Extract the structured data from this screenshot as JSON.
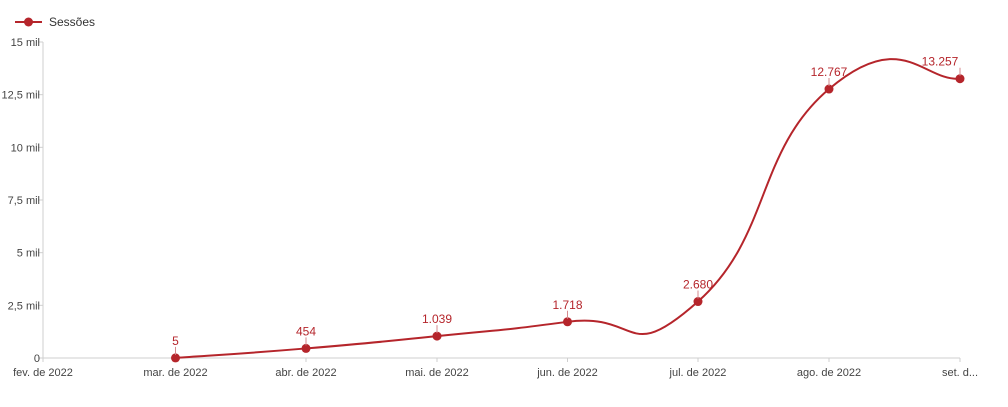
{
  "chart_data": {
    "type": "line",
    "title": "",
    "xlabel": "",
    "ylabel": "",
    "categories": [
      "fev. de 2022",
      "mar. de 2022",
      "abr. de 2022",
      "mai. de 2022",
      "jun. de 2022",
      "jul. de 2022",
      "ago. de 2022",
      "set. d..."
    ],
    "series": [
      {
        "name": "Sessões",
        "color": "#b5252b",
        "points": [
          {
            "x": "mar. de 2022",
            "y": 5,
            "label": "5"
          },
          {
            "x": "abr. de 2022",
            "y": 454,
            "label": "454"
          },
          {
            "x": "mai. de 2022",
            "y": 1039,
            "label": "1.039"
          },
          {
            "x": "jun. de 2022",
            "y": 1718,
            "label": "1.718"
          },
          {
            "x": "jul. de 2022",
            "y": 2680,
            "label": "2.680"
          },
          {
            "x": "ago. de 2022",
            "y": 12767,
            "label": "12.767"
          },
          {
            "x": "set. d...",
            "y": 13257,
            "label": "13.257"
          }
        ]
      }
    ],
    "ylim": [
      0,
      15000
    ],
    "y_ticks": [
      {
        "value": 0,
        "label": "0"
      },
      {
        "value": 2500,
        "label": "2,5 mil"
      },
      {
        "value": 5000,
        "label": "5 mil"
      },
      {
        "value": 7500,
        "label": "7,5 mil"
      },
      {
        "value": 10000,
        "label": "10 mil"
      },
      {
        "value": 12500,
        "label": "12,5 mil"
      },
      {
        "value": 15000,
        "label": "15 mil"
      }
    ],
    "grid": false,
    "smooth": true,
    "legend": {
      "position": "top-left",
      "entries": [
        "Sessões"
      ]
    }
  }
}
